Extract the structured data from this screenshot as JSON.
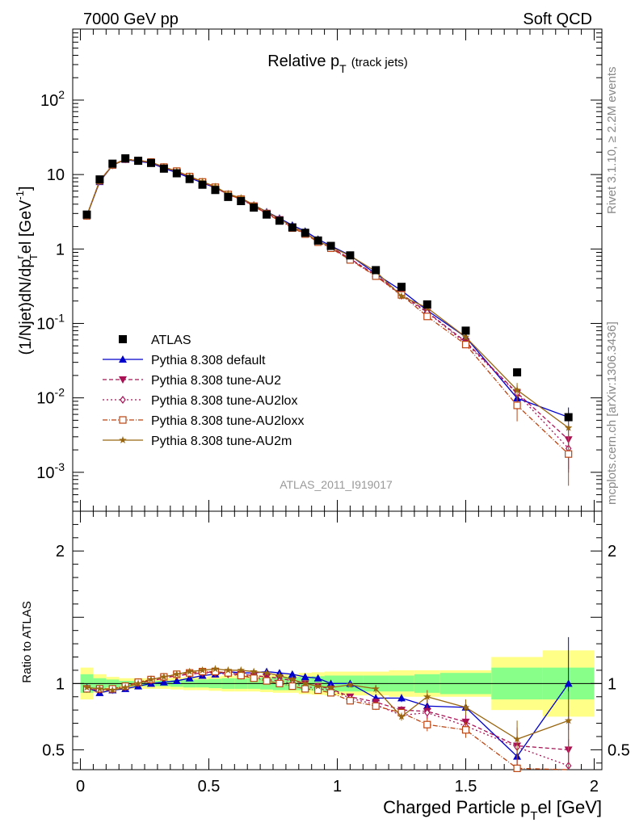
{
  "header": {
    "left": "7000 GeV pp",
    "right": "Soft QCD"
  },
  "side_labels": {
    "rivet": "Rivet 3.1.10, ≥ 2.2M events",
    "mcplots": "mcplots.cern.ch [arXiv:1306.3436]"
  },
  "watermark": "ATLAS_2011_I919017",
  "chart_data": {
    "type": "scatter",
    "title": "Relative p",
    "title_sub": "T",
    "title_extra": "(track jets)",
    "xlabel": "Charged Particle p",
    "xlabel_sub": "T",
    "xlabel_suffix": "el [GeV]",
    "ylabel": "(1/Njet)dN/dp",
    "ylabel_sup": "r",
    "ylabel_sub": "T",
    "ylabel_suffix": "el [GeV",
    "ylabel_exp": "-1",
    "ylabel_close": "]",
    "ratio_ylabel": "Ratio to ATLAS",
    "xlim": [
      -0.03,
      2.03
    ],
    "ylim": [
      0.0003,
      900
    ],
    "ratio_ylim": [
      0.35,
      2.3
    ],
    "log_y": true,
    "x_ticks": [
      "0",
      "0.5",
      "1",
      "1.5",
      "2"
    ],
    "y_ticks": [
      {
        "base": "10",
        "exp": "-3"
      },
      {
        "base": "10",
        "exp": "-2"
      },
      {
        "base": "10",
        "exp": "-1"
      },
      {
        "base": "1",
        "exp": ""
      },
      {
        "base": "10",
        "exp": ""
      },
      {
        "base": "10",
        "exp": "2"
      }
    ],
    "ratio_ticks": [
      "0.5",
      "1",
      "2"
    ],
    "legend_position": "lower-left",
    "x": [
      0.025,
      0.075,
      0.125,
      0.175,
      0.225,
      0.275,
      0.325,
      0.375,
      0.425,
      0.475,
      0.525,
      0.575,
      0.625,
      0.675,
      0.725,
      0.775,
      0.825,
      0.875,
      0.925,
      0.975,
      1.05,
      1.15,
      1.25,
      1.35,
      1.5,
      1.7,
      1.9
    ],
    "bin_edges": [
      0,
      0.05,
      0.1,
      0.15,
      0.2,
      0.25,
      0.3,
      0.35,
      0.4,
      0.45,
      0.5,
      0.55,
      0.6,
      0.65,
      0.7,
      0.75,
      0.8,
      0.85,
      0.9,
      0.95,
      1.0,
      1.1,
      1.2,
      1.3,
      1.4,
      1.6,
      1.8,
      2.0
    ],
    "band_inner": [
      0.07,
      0.04,
      0.03,
      0.02,
      0.02,
      0.02,
      0.02,
      0.025,
      0.03,
      0.03,
      0.035,
      0.04,
      0.04,
      0.04,
      0.045,
      0.05,
      0.05,
      0.05,
      0.055,
      0.06,
      0.06,
      0.06,
      0.06,
      0.07,
      0.08,
      0.12,
      0.12,
      0.55
    ],
    "band_outer": [
      0.12,
      0.07,
      0.05,
      0.04,
      0.04,
      0.04,
      0.04,
      0.045,
      0.05,
      0.05,
      0.055,
      0.06,
      0.06,
      0.06,
      0.065,
      0.07,
      0.07,
      0.08,
      0.085,
      0.09,
      0.09,
      0.09,
      0.1,
      0.1,
      0.1,
      0.2,
      0.25,
      0.95
    ],
    "data_values": [
      2.9,
      8.6,
      14.0,
      16.5,
      15.3,
      14.3,
      12.0,
      10.4,
      8.7,
      7.3,
      6.2,
      5.0,
      4.4,
      3.6,
      2.9,
      2.4,
      1.95,
      1.65,
      1.3,
      1.1,
      0.82,
      0.52,
      0.31,
      0.18,
      0.08,
      0.022,
      0.0055
    ],
    "series": [
      {
        "name": "ATLAS",
        "color": "#000000",
        "dash": "",
        "marker": "square",
        "values": [
          2.9,
          8.6,
          14.0,
          16.5,
          15.3,
          14.3,
          12.0,
          10.4,
          8.7,
          7.3,
          6.2,
          5.0,
          4.4,
          3.6,
          2.9,
          2.4,
          1.95,
          1.65,
          1.3,
          1.1,
          0.82,
          0.52,
          0.31,
          0.18,
          0.08,
          0.022,
          0.0055
        ]
      },
      {
        "name": "Pythia 8.308 default",
        "color": "#0000cc",
        "dash": "",
        "marker": "triangle-up",
        "ratio": [
          0.97,
          0.93,
          0.95,
          0.96,
          0.98,
          1.0,
          1.01,
          1.02,
          1.04,
          1.06,
          1.07,
          1.09,
          1.08,
          1.08,
          1.09,
          1.08,
          1.07,
          1.05,
          1.04,
          1.0,
          1.0,
          0.89,
          0.89,
          0.83,
          0.82,
          0.45,
          1.0
        ],
        "ratio_err": [
          0,
          0,
          0,
          0,
          0,
          0,
          0,
          0,
          0,
          0,
          0,
          0,
          0,
          0,
          0,
          0,
          0,
          0,
          0,
          0,
          0.02,
          0.03,
          0.03,
          0.05,
          0.06,
          0.14,
          0.35
        ]
      },
      {
        "name": "Pythia 8.308 tune-AU2",
        "color": "#aa1155",
        "dash": "5,3",
        "marker": "triangle-down",
        "ratio": [
          0.96,
          0.95,
          0.95,
          0.97,
          1.0,
          1.02,
          1.04,
          1.06,
          1.07,
          1.08,
          1.09,
          1.08,
          1.07,
          1.06,
          1.05,
          1.04,
          1.02,
          1.0,
          0.98,
          0.96,
          0.9,
          0.86,
          0.8,
          0.79,
          0.71,
          0.53,
          0.5
        ],
        "ratio_err": [
          0,
          0,
          0,
          0,
          0,
          0,
          0,
          0,
          0,
          0,
          0,
          0,
          0,
          0,
          0,
          0,
          0,
          0,
          0,
          0,
          0.02,
          0.03,
          0.03,
          0.05,
          0.06,
          0.14,
          0.3
        ]
      },
      {
        "name": "Pythia 8.308 tune-AU2lox",
        "color": "#aa1155",
        "dash": "2,3",
        "marker": "diamond-open",
        "ratio": [
          0.96,
          0.95,
          0.96,
          0.98,
          1.01,
          1.03,
          1.05,
          1.06,
          1.07,
          1.08,
          1.08,
          1.07,
          1.06,
          1.05,
          1.03,
          1.02,
          1.0,
          0.98,
          0.96,
          0.95,
          0.89,
          0.84,
          0.76,
          0.78,
          0.68,
          0.52,
          0.38
        ],
        "ratio_err": [
          0,
          0,
          0,
          0,
          0,
          0,
          0,
          0,
          0,
          0,
          0,
          0,
          0,
          0,
          0,
          0,
          0,
          0,
          0,
          0,
          0.02,
          0.03,
          0.03,
          0.05,
          0.06,
          0.14,
          0.2
        ]
      },
      {
        "name": "Pythia 8.308 tune-AU2loxx",
        "color": "#bb4411",
        "dash": "6,2,1,2",
        "marker": "square-open",
        "ratio": [
          0.96,
          0.96,
          0.96,
          0.98,
          1.01,
          1.03,
          1.05,
          1.07,
          1.08,
          1.09,
          1.09,
          1.08,
          1.06,
          1.04,
          1.02,
          1.0,
          0.98,
          0.96,
          0.95,
          0.93,
          0.87,
          0.83,
          0.78,
          0.69,
          0.65,
          0.36,
          0.32
        ],
        "ratio_err": [
          0,
          0,
          0,
          0,
          0,
          0,
          0,
          0,
          0,
          0,
          0,
          0,
          0,
          0,
          0,
          0,
          0,
          0,
          0,
          0,
          0.02,
          0.03,
          0.03,
          0.05,
          0.06,
          0.14,
          0.2
        ]
      },
      {
        "name": "Pythia 8.308 tune-AU2m",
        "color": "#996611",
        "dash": "",
        "marker": "star",
        "ratio": [
          0.97,
          0.96,
          0.95,
          0.97,
          1.0,
          1.03,
          1.05,
          1.07,
          1.09,
          1.1,
          1.11,
          1.1,
          1.1,
          1.09,
          1.08,
          1.06,
          1.03,
          1.0,
          0.98,
          0.97,
          0.99,
          0.96,
          0.75,
          0.9,
          0.82,
          0.58,
          0.72
        ],
        "ratio_err": [
          0,
          0,
          0,
          0,
          0,
          0,
          0,
          0,
          0,
          0,
          0,
          0,
          0,
          0,
          0,
          0,
          0,
          0,
          0,
          0,
          0.02,
          0.03,
          0.03,
          0.05,
          0.06,
          0.14,
          0.22
        ]
      }
    ]
  }
}
